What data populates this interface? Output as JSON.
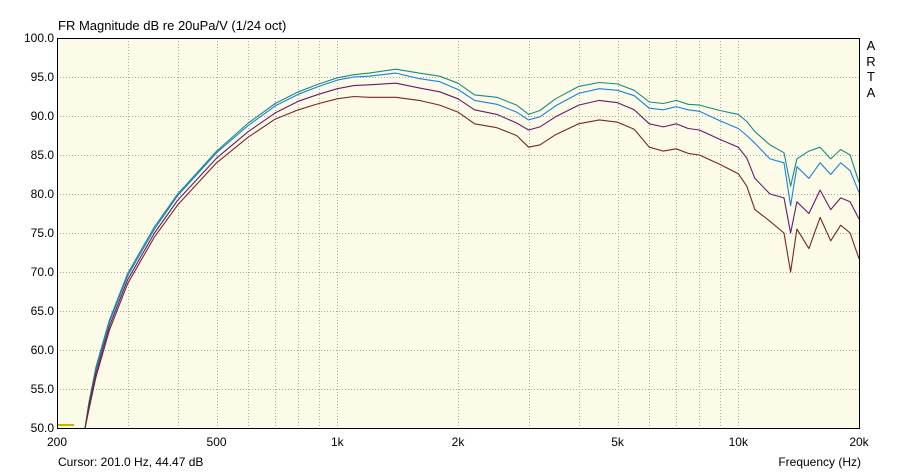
{
  "chart_data": {
    "type": "line",
    "title": "FR Magnitude dB re 20uPa/V (1/24 oct)",
    "xlabel": "Frequency (Hz)",
    "ylabel": "",
    "xscale": "log",
    "xlim": [
      200,
      20000
    ],
    "ylim": [
      50,
      100
    ],
    "grid": true,
    "xticks": [
      200,
      500,
      1000,
      2000,
      5000,
      10000,
      20000
    ],
    "xtick_labels": [
      "200",
      "500",
      "1k",
      "2k",
      "5k",
      "10k",
      "20k"
    ],
    "yticks": [
      50,
      55,
      60,
      65,
      70,
      75,
      80,
      85,
      90,
      95,
      100
    ],
    "ytick_labels": [
      "50.0",
      "55.0",
      "60.0",
      "65.0",
      "70.0",
      "75.0",
      "80.0",
      "85.0",
      "90.0",
      "95.0",
      "100.0"
    ],
    "colors": {
      "plot_bg": "#fcfbe8",
      "grid": "#a8a8a8",
      "series_1": "#1880e0",
      "series_2": "#1a8c80",
      "series_3": "#6a1a6a",
      "series_4": "#7a2626",
      "cursor_marker": "#c8b400"
    },
    "series": [
      {
        "x": [
          235,
          240,
          250,
          270,
          300,
          350,
          400,
          500,
          600,
          700,
          800,
          900,
          1000,
          1100,
          1200,
          1400,
          1600,
          1800,
          2000,
          2200,
          2500,
          2800,
          3000,
          3200,
          3500,
          4000,
          4500,
          5000,
          5500,
          6000,
          6500,
          7000,
          7500,
          8000,
          9000,
          10000,
          10500,
          11000,
          12000,
          13000,
          13500,
          14000,
          15000,
          16000,
          17000,
          18000,
          19000,
          20000
        ],
        "y": [
          50.0,
          53.0,
          57.5,
          63.5,
          69.5,
          75.5,
          79.8,
          85.3,
          88.8,
          91.3,
          92.8,
          93.8,
          94.6,
          95.0,
          95.1,
          95.5,
          94.8,
          94.4,
          93.4,
          92.0,
          91.5,
          90.5,
          89.5,
          89.9,
          91.3,
          92.9,
          93.5,
          93.3,
          92.6,
          91.0,
          90.8,
          91.2,
          90.8,
          90.6,
          89.4,
          88.4,
          87.5,
          86.5,
          84.5,
          84.0,
          78.5,
          83.5,
          82.0,
          84.0,
          82.5,
          84.0,
          83.0,
          80.2
        ]
      },
      {
        "x": [
          235,
          240,
          250,
          270,
          300,
          350,
          400,
          500,
          600,
          700,
          800,
          900,
          1000,
          1100,
          1200,
          1400,
          1600,
          1800,
          2000,
          2200,
          2500,
          2800,
          3000,
          3200,
          3500,
          4000,
          4500,
          5000,
          5500,
          6000,
          6500,
          7000,
          7500,
          8000,
          9000,
          10000,
          10500,
          11000,
          12000,
          13000,
          13500,
          14000,
          15000,
          16000,
          17000,
          18000,
          19000,
          20000
        ],
        "y": [
          50.0,
          53.2,
          57.8,
          63.8,
          69.8,
          75.8,
          80.0,
          85.5,
          89.1,
          91.6,
          93.1,
          94.1,
          94.9,
          95.3,
          95.5,
          96.0,
          95.5,
          95.1,
          94.2,
          92.7,
          92.4,
          91.4,
          90.2,
          90.7,
          92.2,
          93.8,
          94.3,
          94.1,
          93.3,
          91.8,
          91.6,
          92.0,
          91.5,
          91.4,
          90.7,
          90.2,
          89.3,
          88.0,
          86.3,
          85.3,
          81.0,
          84.5,
          85.5,
          86.0,
          84.5,
          85.7,
          85.0,
          81.5
        ]
      },
      {
        "x": [
          235,
          240,
          250,
          270,
          300,
          350,
          400,
          500,
          600,
          700,
          800,
          900,
          1000,
          1100,
          1200,
          1400,
          1600,
          1800,
          2000,
          2200,
          2500,
          2800,
          3000,
          3200,
          3500,
          4000,
          4500,
          5000,
          5500,
          6000,
          6500,
          7000,
          7500,
          8000,
          9000,
          10000,
          10500,
          11000,
          12000,
          13000,
          13500,
          14000,
          15000,
          16000,
          17000,
          18000,
          19000,
          20000
        ],
        "y": [
          50.0,
          52.8,
          57.0,
          63.0,
          69.0,
          75.0,
          79.2,
          84.6,
          88.0,
          90.4,
          91.9,
          92.8,
          93.5,
          93.9,
          94.0,
          94.2,
          93.6,
          93.1,
          92.2,
          90.8,
          90.2,
          89.1,
          88.2,
          88.6,
          89.9,
          91.4,
          92.0,
          91.7,
          90.8,
          89.0,
          88.6,
          89.0,
          88.4,
          88.2,
          87.0,
          86.0,
          84.6,
          82.0,
          80.0,
          79.5,
          75.0,
          79.0,
          77.5,
          80.5,
          78.0,
          79.5,
          79.0,
          76.8
        ]
      },
      {
        "x": [
          235,
          240,
          250,
          270,
          300,
          350,
          400,
          500,
          600,
          700,
          800,
          900,
          1000,
          1100,
          1200,
          1400,
          1600,
          1800,
          2000,
          2200,
          2500,
          2800,
          3000,
          3200,
          3500,
          4000,
          4500,
          5000,
          5500,
          6000,
          6500,
          7000,
          7500,
          8000,
          9000,
          10000,
          10500,
          11000,
          12000,
          13000,
          13500,
          14000,
          15000,
          16000,
          17000,
          18000,
          19000,
          20000
        ],
        "y": [
          50.0,
          52.3,
          56.5,
          62.5,
          68.5,
          74.5,
          78.6,
          84.0,
          87.3,
          89.6,
          90.8,
          91.6,
          92.2,
          92.5,
          92.4,
          92.4,
          92.0,
          91.4,
          90.5,
          89.0,
          88.5,
          87.5,
          86.0,
          86.3,
          87.6,
          89.0,
          89.5,
          89.2,
          88.3,
          86.0,
          85.5,
          85.8,
          85.2,
          85.0,
          83.8,
          82.6,
          81.0,
          78.0,
          76.5,
          75.0,
          70.0,
          75.5,
          73.0,
          77.0,
          74.0,
          76.0,
          75.0,
          71.7
        ]
      }
    ]
  },
  "cursor_readout": "Cursor: 201.0 Hz, 44.47 dB",
  "brand_letters": [
    "A",
    "R",
    "T",
    "A"
  ]
}
